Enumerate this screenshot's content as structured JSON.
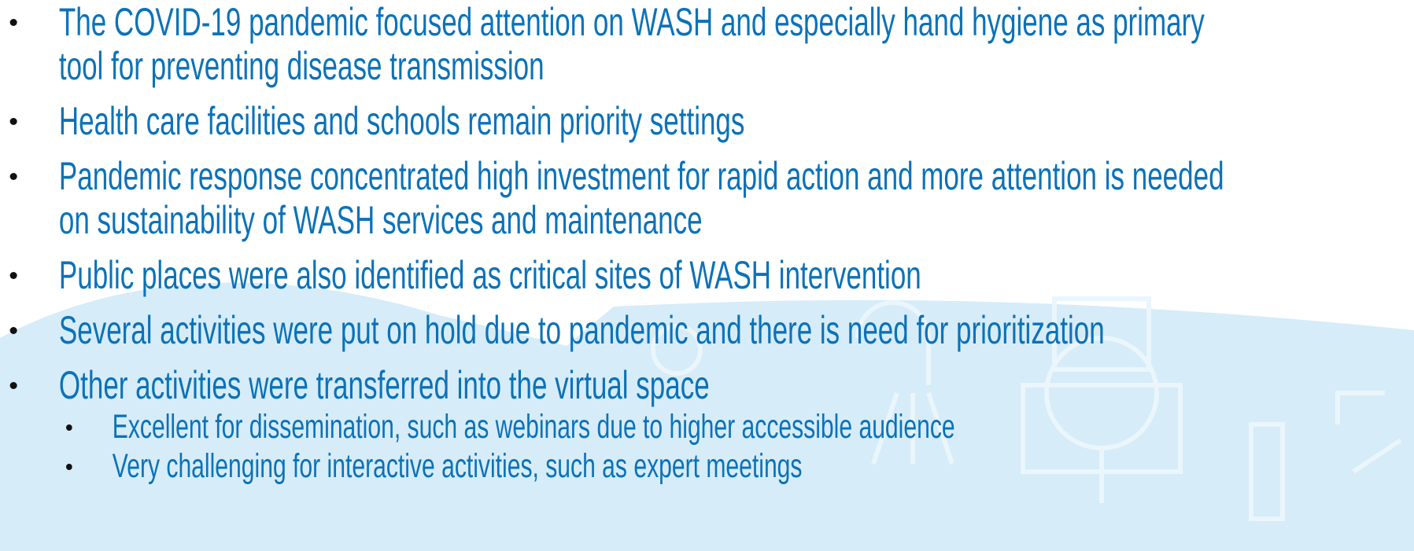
{
  "bullets": [
    {
      "text": "The COVID-19 pandemic focused attention on WASH and especially hand hygiene as primary tool for preventing disease transmission"
    },
    {
      "text": "Health care facilities and schools remain priority settings"
    },
    {
      "text": "Pandemic response concentrated high investment for rapid action and more attention is needed on sustainability of WASH services and maintenance"
    },
    {
      "text": "Public places were also identified as critical sites of WASH intervention"
    },
    {
      "text": "Several activities were put on hold due to pandemic and there is need for prioritization"
    },
    {
      "text": "Other activities were transferred into the virtual space",
      "sub_bullets": [
        "Excellent for dissemination, such as webinars due to higher accessible audience",
        "Very challenging for interactive activities, such as expert meetings"
      ]
    }
  ]
}
